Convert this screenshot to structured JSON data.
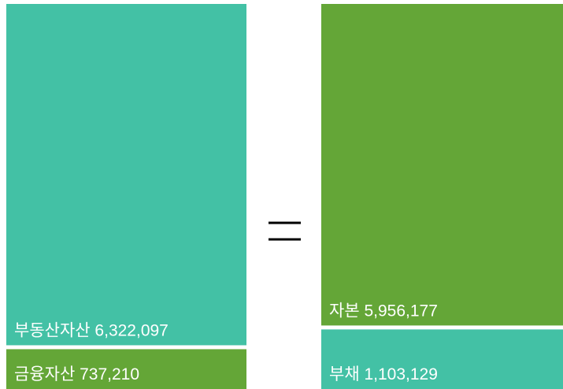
{
  "chart_data": {
    "type": "stacked-bar",
    "title": "",
    "xlabel": "",
    "ylabel": "",
    "colors": {
      "teal": "#43c1a5",
      "green": "#64a637"
    },
    "columns": [
      {
        "segments": [
          {
            "name": "부동산자산",
            "value": 6322097,
            "label": "부동산자산 6,322,097",
            "color": "#43c1a5"
          },
          {
            "name": "금융자산",
            "value": 737210,
            "label": "금융자산 737,210",
            "color": "#64a637"
          }
        ]
      },
      {
        "segments": [
          {
            "name": "자본",
            "value": 5956177,
            "label": "자본 5,956,177",
            "color": "#64a637"
          },
          {
            "name": "부채",
            "value": 1103129,
            "label": "부채 1,103,129",
            "color": "#43c1a5"
          }
        ]
      }
    ],
    "operator": "equals"
  }
}
